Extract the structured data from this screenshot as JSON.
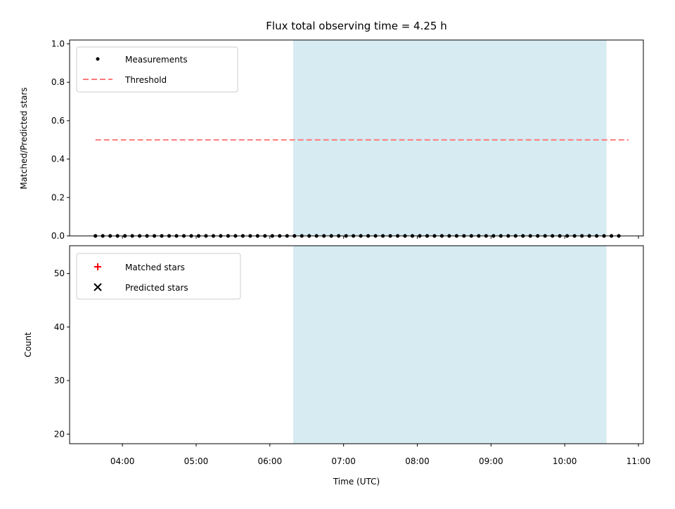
{
  "chart_data": [
    {
      "type": "scatter",
      "title": "Flux total observing time = 4.25 h",
      "xlabel": "",
      "ylabel": "Matched/Predicted stars",
      "xlim": [
        "03:17",
        "11:04"
      ],
      "ylim": [
        0,
        1.02
      ],
      "yticks": [
        0.0,
        0.2,
        0.4,
        0.6,
        0.8,
        1.0
      ],
      "ytick_labels": [
        "0.0",
        "0.2",
        "0.4",
        "0.6",
        "0.8",
        "1.0"
      ],
      "legend_position": "upper-left",
      "shaded_region": {
        "x_start": "06:19",
        "x_end": "10:34",
        "color": "#add8e6"
      },
      "series": [
        {
          "name": "Measurements",
          "marker": "dot",
          "color": "#000000",
          "x": [
            "03:38",
            "03:44",
            "03:50",
            "03:56",
            "04:02",
            "04:08",
            "04:14",
            "04:20",
            "04:26",
            "04:32",
            "04:38",
            "04:44",
            "04:50",
            "04:56",
            "05:02",
            "05:08",
            "05:14",
            "05:20",
            "05:26",
            "05:32",
            "05:38",
            "05:44",
            "05:50",
            "05:56",
            "06:02",
            "06:08",
            "06:14",
            "06:20",
            "06:26",
            "06:32",
            "06:38",
            "06:44",
            "06:50",
            "06:56",
            "07:02",
            "07:08",
            "07:14",
            "07:20",
            "07:26",
            "07:32",
            "07:38",
            "07:44",
            "07:50",
            "07:56",
            "08:02",
            "08:08",
            "08:14",
            "08:20",
            "08:26",
            "08:32",
            "08:38",
            "08:44",
            "08:50",
            "08:56",
            "09:02",
            "09:08",
            "09:14",
            "09:20",
            "09:26",
            "09:32",
            "09:38",
            "09:44",
            "09:50",
            "09:56",
            "10:02",
            "10:08",
            "10:14",
            "10:20",
            "10:26",
            "10:32",
            "10:38",
            "10:44"
          ],
          "y": [
            0,
            0,
            0,
            0,
            0,
            0,
            0,
            0,
            0,
            0,
            0,
            0,
            0,
            0,
            0,
            0,
            0,
            0,
            0,
            0,
            0,
            0,
            0,
            0,
            0,
            0,
            0,
            0,
            0,
            0,
            0,
            0,
            0,
            0,
            0,
            0,
            0,
            0,
            0,
            0,
            0,
            0,
            0,
            0,
            0,
            0,
            0,
            0,
            0,
            0,
            0,
            0,
            0,
            0,
            0,
            0,
            0,
            0,
            0,
            0,
            0,
            0,
            0,
            0,
            0,
            0,
            0,
            0,
            0,
            0,
            0,
            0
          ]
        },
        {
          "name": "Threshold",
          "line_style": "dashed",
          "color": "#ff7a7a",
          "x": [
            "03:38",
            "10:52"
          ],
          "y": [
            0.5,
            0.5
          ]
        }
      ]
    },
    {
      "type": "scatter",
      "xlabel": "Time (UTC)",
      "ylabel": "Count",
      "xlim": [
        "03:17",
        "11:04"
      ],
      "ylim": [
        18.2,
        55.2
      ],
      "yticks": [
        20,
        30,
        40,
        50
      ],
      "ytick_labels": [
        "20",
        "30",
        "40",
        "50"
      ],
      "xticks": [
        "04:00",
        "05:00",
        "06:00",
        "07:00",
        "08:00",
        "09:00",
        "10:00",
        "11:00"
      ],
      "legend_position": "upper-left",
      "shaded_region": {
        "x_start": "06:19",
        "x_end": "10:34",
        "color": "#add8e6"
      },
      "series": [
        {
          "name": "Matched stars",
          "marker": "plus",
          "color": "#ff0000",
          "x": [],
          "y": []
        },
        {
          "name": "Predicted stars",
          "marker": "x",
          "color": "#000000",
          "x": [],
          "y": []
        }
      ]
    }
  ]
}
